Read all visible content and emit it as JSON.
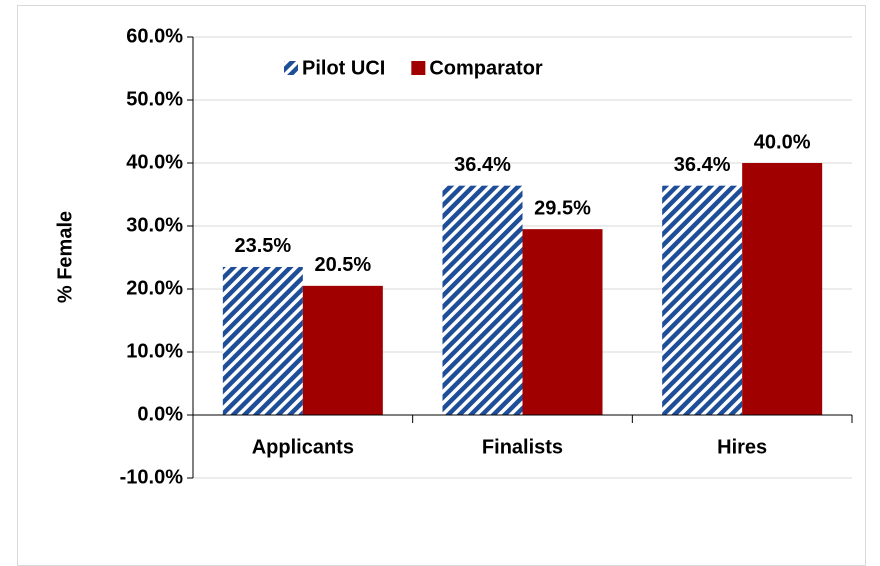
{
  "chart_data": {
    "type": "bar",
    "y_label": "% Female",
    "categories": [
      "Applicants",
      "Finalists",
      "Hires"
    ],
    "series": [
      {
        "name": "Pilot UCI",
        "color": "#1f4e99",
        "pattern": "hatch",
        "values": [
          23.5,
          36.4,
          36.4
        ],
        "value_labels": [
          "23.5%",
          "36.4%",
          "36.4%"
        ]
      },
      {
        "name": "Comparator",
        "color": "#a00000",
        "values": [
          20.5,
          29.5,
          40.0
        ],
        "value_labels": [
          "20.5%",
          "29.5%",
          "40.0%"
        ]
      }
    ],
    "ylim": [
      -10,
      60
    ],
    "yticks": [
      {
        "value": -10,
        "label": "-10.0%"
      },
      {
        "value": 0,
        "label": "0.0%"
      },
      {
        "value": 10,
        "label": "10.0%"
      },
      {
        "value": 20,
        "label": "20.0%"
      },
      {
        "value": 30,
        "label": "30.0%"
      },
      {
        "value": 40,
        "label": "40.0%"
      },
      {
        "value": 50,
        "label": "50.0%"
      },
      {
        "value": 60,
        "label": "60.0%"
      }
    ],
    "grid": true,
    "legend": "top"
  }
}
